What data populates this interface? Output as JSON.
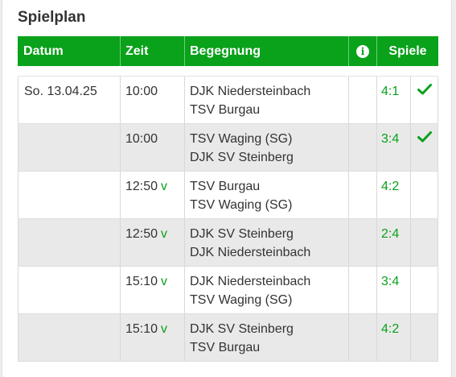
{
  "title": "Spielplan",
  "accent_color": "#0aa11b",
  "header": {
    "datum": "Datum",
    "zeit": "Zeit",
    "begegnung": "Begegnung",
    "info_icon": "info-icon",
    "spiele": "Spiele"
  },
  "rows": [
    {
      "datum": "So. 13.04.25",
      "zeit": "10:00",
      "v": "",
      "home": "DJK Niedersteinbach",
      "away": "TSV Burgau",
      "score": "4:1",
      "done": true
    },
    {
      "datum": "",
      "zeit": "10:00",
      "v": "",
      "home": "TSV Waging (SG)",
      "away": "DJK SV Steinberg",
      "score": "3:4",
      "done": true
    },
    {
      "datum": "",
      "zeit": "12:50",
      "v": "v",
      "home": "TSV Burgau",
      "away": "TSV Waging (SG)",
      "score": "4:2",
      "done": false
    },
    {
      "datum": "",
      "zeit": "12:50",
      "v": "v",
      "home": "DJK SV Steinberg",
      "away": "DJK Niedersteinbach",
      "score": "2:4",
      "done": false
    },
    {
      "datum": "",
      "zeit": "15:10",
      "v": "v",
      "home": "DJK Niedersteinbach",
      "away": "TSV Waging (SG)",
      "score": "3:4",
      "done": false
    },
    {
      "datum": "",
      "zeit": "15:10",
      "v": "v",
      "home": "DJK SV Steinberg",
      "away": "TSV Burgau",
      "score": "4:2",
      "done": false
    }
  ]
}
